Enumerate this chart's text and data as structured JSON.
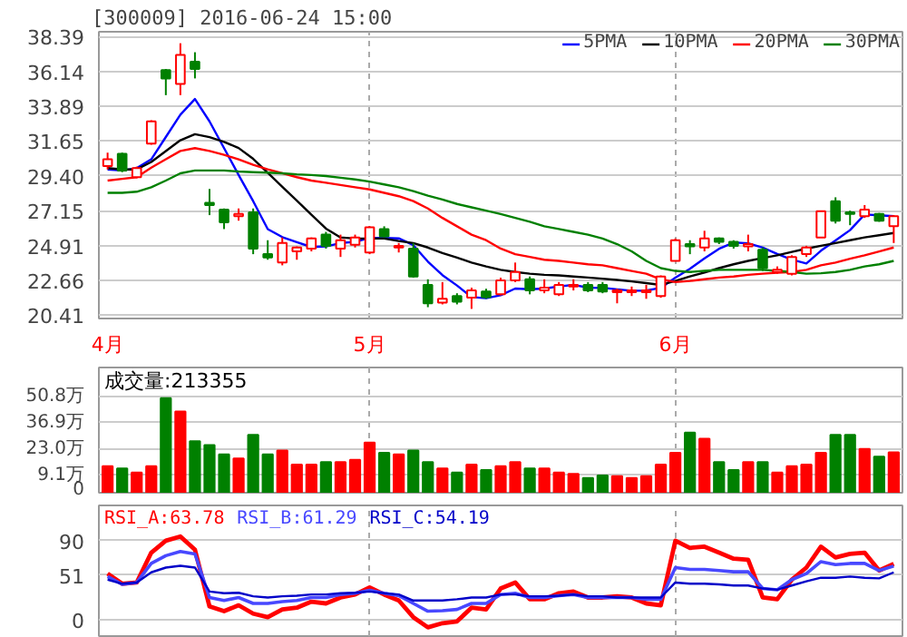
{
  "chart_data": [
    {
      "type": "candlestick",
      "title": "[300009] 2016-06-24 15:00",
      "categories": [
        "4月",
        null,
        null,
        null,
        null,
        null,
        null,
        null,
        null,
        null,
        null,
        null,
        null,
        null,
        null,
        null,
        null,
        null,
        "5月",
        null,
        null,
        null,
        null,
        null,
        null,
        null,
        null,
        null,
        null,
        null,
        null,
        null,
        null,
        null,
        null,
        null,
        null,
        null,
        null,
        "6月",
        null,
        null,
        null,
        null,
        null,
        null,
        null,
        null,
        null,
        null,
        null,
        null,
        null,
        null,
        null
      ],
      "ohlc": [
        [
          30.04,
          30.9,
          29.82,
          30.47
        ],
        [
          30.83,
          30.9,
          29.64,
          29.75
        ],
        [
          29.32,
          30.0,
          29.25,
          29.9
        ],
        [
          31.48,
          32.99,
          31.41,
          32.92
        ],
        [
          36.23,
          36.3,
          34.61,
          35.69
        ],
        [
          35.33,
          37.96,
          34.61,
          37.2
        ],
        [
          36.77,
          37.38,
          35.69,
          36.3
        ],
        [
          27.66,
          28.56,
          26.87,
          27.52
        ],
        [
          27.23,
          27.3,
          25.97,
          26.4
        ],
        [
          26.8,
          27.3,
          26.51,
          26.94
        ],
        [
          27.05,
          27.3,
          24.35,
          24.71
        ],
        [
          24.35,
          25.25,
          23.99,
          24.13
        ],
        [
          23.81,
          25.43,
          23.63,
          25.07
        ],
        [
          24.53,
          24.85,
          23.99,
          24.78
        ],
        [
          24.71,
          25.43,
          24.53,
          25.36
        ],
        [
          25.61,
          25.79,
          24.71,
          24.89
        ],
        [
          24.71,
          25.61,
          24.17,
          25.25
        ],
        [
          24.96,
          25.61,
          24.78,
          25.43
        ],
        [
          24.46,
          26.15,
          24.35,
          26.08
        ],
        [
          25.97,
          26.15,
          25.43,
          25.5
        ],
        [
          24.78,
          25.07,
          24.46,
          24.89
        ],
        [
          24.71,
          25.07,
          22.84,
          22.91
        ],
        [
          22.37,
          22.73,
          20.93,
          21.18
        ],
        [
          21.22,
          22.55,
          21.11,
          21.47
        ],
        [
          21.65,
          21.83,
          21.11,
          21.29
        ],
        [
          21.54,
          22.19,
          20.82,
          22.01
        ],
        [
          21.94,
          22.12,
          21.47,
          21.58
        ],
        [
          21.76,
          22.84,
          21.69,
          22.66
        ],
        [
          22.66,
          23.81,
          22.55,
          23.2
        ],
        [
          22.73,
          22.91,
          21.76,
          22.01
        ],
        [
          22.01,
          22.73,
          21.83,
          22.19
        ],
        [
          21.76,
          22.55,
          21.65,
          22.37
        ],
        [
          22.26,
          22.73,
          22.01,
          22.37
        ],
        [
          22.37,
          22.55,
          21.9,
          22.01
        ],
        [
          22.37,
          22.55,
          21.83,
          21.94
        ],
        [
          21.9,
          22.12,
          21.18,
          22.01
        ],
        [
          21.9,
          22.26,
          21.65,
          22.01
        ],
        [
          21.9,
          22.37,
          21.47,
          22.01
        ],
        [
          21.65,
          22.98,
          21.54,
          22.91
        ],
        [
          23.92,
          25.36,
          23.92,
          25.25
        ],
        [
          25.0,
          25.25,
          24.35,
          24.85
        ],
        [
          24.78,
          25.86,
          24.53,
          25.36
        ],
        [
          25.36,
          25.43,
          25.0,
          25.14
        ],
        [
          25.14,
          25.25,
          24.71,
          24.89
        ],
        [
          24.85,
          25.61,
          24.53,
          25.0
        ],
        [
          24.64,
          24.78,
          23.27,
          23.45
        ],
        [
          23.2,
          23.56,
          23.09,
          23.34
        ],
        [
          23.09,
          24.28,
          22.98,
          24.17
        ],
        [
          24.35,
          24.89,
          24.17,
          24.78
        ],
        [
          25.43,
          27.16,
          25.43,
          27.12
        ],
        [
          27.77,
          28.02,
          26.33,
          26.51
        ],
        [
          27.05,
          27.16,
          26.22,
          26.94
        ],
        [
          26.8,
          27.52,
          26.69,
          27.23
        ],
        [
          26.94,
          27.01,
          26.44,
          26.51
        ],
        [
          26.15,
          26.87,
          25.07,
          26.8
        ]
      ],
      "colors": [
        "#ff0000",
        "#008000",
        "#ff0000",
        "#ff0000",
        "#008000",
        "#ff0000",
        "#008000",
        "#008000",
        "#008000",
        "#ff0000",
        "#008000",
        "#008000",
        "#ff0000",
        "#ff0000",
        "#ff0000",
        "#008000",
        "#ff0000",
        "#ff0000",
        "#ff0000",
        "#008000",
        "#ff0000",
        "#008000",
        "#008000",
        "#ff0000",
        "#008000",
        "#ff0000",
        "#008000",
        "#ff0000",
        "#ff0000",
        "#008000",
        "#ff0000",
        "#ff0000",
        "#ff0000",
        "#008000",
        "#008000",
        "#ff0000",
        "#ff0000",
        "#ff0000",
        "#ff0000",
        "#ff0000",
        "#008000",
        "#ff0000",
        "#008000",
        "#008000",
        "#ff0000",
        "#008000",
        "#ff0000",
        "#ff0000",
        "#ff0000",
        "#ff0000",
        "#008000",
        "#008000",
        "#ff0000",
        "#008000",
        "#ff0000"
      ],
      "series": [
        {
          "type": "line",
          "name": "5PMA",
          "color": "#0000ff",
          "values": [
            29.82,
            29.75,
            29.9,
            30.47,
            31.91,
            33.35,
            34.36,
            32.92,
            31.19,
            29.46,
            27.77,
            25.97,
            25.45,
            25.13,
            24.81,
            24.85,
            25.07,
            25.14,
            25.4,
            25.4,
            25.37,
            24.93,
            23.87,
            23.0,
            22.33,
            21.58,
            21.51,
            21.7,
            22.13,
            22.09,
            22.13,
            22.27,
            22.37,
            22.19,
            22.18,
            22.08,
            21.99,
            22.0,
            22.18,
            22.83,
            23.41,
            24.08,
            24.7,
            25.1,
            25.05,
            24.77,
            24.36,
            24.0,
            23.75,
            24.57,
            25.23,
            25.9,
            26.91,
            26.86,
            26.8
          ]
        },
        {
          "type": "line",
          "name": "10PMA",
          "color": "#000000",
          "values": [
            29.9,
            29.82,
            29.82,
            30.3,
            31.0,
            31.7,
            32.09,
            31.9,
            31.6,
            31.2,
            30.5,
            29.6,
            28.7,
            27.8,
            26.9,
            26.0,
            25.43,
            25.36,
            25.36,
            25.36,
            25.2,
            25.07,
            24.78,
            24.42,
            24.13,
            23.81,
            23.56,
            23.34,
            23.2,
            23.09,
            23.02,
            22.98,
            22.91,
            22.84,
            22.77,
            22.69,
            22.59,
            22.48,
            22.37,
            22.62,
            22.91,
            23.16,
            23.45,
            23.7,
            23.92,
            24.1,
            24.28,
            24.5,
            24.71,
            24.89,
            25.07,
            25.25,
            25.43,
            25.57,
            25.72
          ]
        },
        {
          "type": "line",
          "name": "20PMA",
          "color": "#ff0000",
          "values": [
            29.1,
            29.21,
            29.32,
            29.93,
            30.47,
            31.01,
            31.19,
            31.01,
            30.76,
            30.47,
            30.11,
            29.82,
            29.57,
            29.32,
            29.1,
            28.96,
            28.81,
            28.67,
            28.53,
            28.31,
            28.09,
            27.77,
            27.3,
            26.69,
            26.15,
            25.61,
            25.25,
            24.71,
            24.35,
            24.17,
            23.99,
            23.92,
            23.81,
            23.7,
            23.63,
            23.45,
            23.27,
            23.09,
            22.73,
            22.55,
            22.62,
            22.73,
            22.84,
            22.91,
            23.02,
            23.09,
            23.16,
            23.2,
            23.34,
            23.63,
            23.81,
            24.06,
            24.28,
            24.53,
            24.78
          ]
        },
        {
          "type": "line",
          "name": "30PMA",
          "color": "#008000",
          "values": [
            28.31,
            28.31,
            28.38,
            28.67,
            29.1,
            29.57,
            29.75,
            29.75,
            29.75,
            29.68,
            29.64,
            29.61,
            29.57,
            29.5,
            29.46,
            29.39,
            29.28,
            29.17,
            29.03,
            28.85,
            28.67,
            28.42,
            28.13,
            27.88,
            27.59,
            27.37,
            27.16,
            26.94,
            26.69,
            26.44,
            26.15,
            25.97,
            25.79,
            25.61,
            25.36,
            25.0,
            24.53,
            23.92,
            23.45,
            23.27,
            23.2,
            23.27,
            23.34,
            23.34,
            23.34,
            23.34,
            23.27,
            23.2,
            23.09,
            23.12,
            23.2,
            23.34,
            23.56,
            23.7,
            23.92
          ]
        }
      ],
      "ylim": [
        20.2,
        38.7
      ],
      "yticks": [
        20.41,
        22.66,
        24.91,
        27.15,
        {
          "value": 29.4,
          "label": "29.40"
        },
        31.65,
        33.89,
        36.14,
        38.39
      ],
      "grid": true,
      "legend": "top right"
    },
    {
      "type": "bar",
      "annotations": [
        "成交量:213355"
      ],
      "categories": [
        null,
        null,
        null,
        null,
        null,
        null,
        null,
        null,
        null,
        null,
        null,
        null,
        null,
        null,
        null,
        null,
        null,
        null,
        null,
        null,
        null,
        null,
        null,
        null,
        null,
        null,
        null,
        null,
        null,
        null,
        null,
        null,
        null,
        null,
        null,
        null,
        null,
        null,
        null,
        null,
        null,
        null,
        null,
        null,
        null,
        null,
        null,
        null,
        null,
        null,
        null,
        null,
        null,
        null,
        null
      ],
      "values": [
        14.0,
        12.8,
        10.7,
        14.0,
        49.9,
        42.8,
        27.2,
        25.1,
        20.2,
        18.1,
        30.5,
        20.2,
        22.2,
        14.8,
        14.8,
        16.1,
        16.1,
        17.3,
        26.4,
        21.0,
        20.2,
        22.2,
        16.1,
        12.8,
        10.7,
        14.8,
        11.9,
        14.0,
        16.1,
        12.8,
        12.8,
        10.7,
        9.9,
        7.8,
        9.1,
        8.7,
        7.8,
        8.7,
        14.8,
        21.0,
        31.7,
        28.4,
        16.1,
        11.9,
        16.1,
        16.1,
        10.7,
        14.0,
        14.8,
        21.0,
        30.5,
        30.5,
        23.1,
        19.0,
        21.3
      ],
      "colors": [
        "#ff0000",
        "#008000",
        "#ff0000",
        "#ff0000",
        "#008000",
        "#ff0000",
        "#008000",
        "#008000",
        "#008000",
        "#ff0000",
        "#008000",
        "#008000",
        "#ff0000",
        "#ff0000",
        "#ff0000",
        "#008000",
        "#ff0000",
        "#ff0000",
        "#ff0000",
        "#008000",
        "#ff0000",
        "#008000",
        "#008000",
        "#ff0000",
        "#008000",
        "#ff0000",
        "#008000",
        "#ff0000",
        "#ff0000",
        "#008000",
        "#ff0000",
        "#ff0000",
        "#ff0000",
        "#008000",
        "#008000",
        "#ff0000",
        "#ff0000",
        "#ff0000",
        "#ff0000",
        "#ff0000",
        "#008000",
        "#ff0000",
        "#008000",
        "#008000",
        "#ff0000",
        "#008000",
        "#ff0000",
        "#ff0000",
        "#ff0000",
        "#ff0000",
        "#008000",
        "#008000",
        "#ff0000",
        "#008000",
        "#ff0000"
      ],
      "ylim": [
        0,
        66
      ],
      "yticks": [
        0,
        {
          "value": 9.1,
          "label": "9.1万"
        },
        {
          "value": 23.0,
          "label": "23.0万"
        },
        {
          "value": 36.9,
          "label": "36.9万"
        },
        {
          "value": 50.8,
          "label": "50.8万"
        }
      ],
      "grid": true,
      "tick_labels": "y"
    },
    {
      "type": "line",
      "categories": [
        null,
        null,
        null,
        null,
        null,
        null,
        null,
        null,
        null,
        null,
        null,
        null,
        null,
        null,
        null,
        null,
        null,
        null,
        null,
        null,
        null,
        null,
        null,
        null,
        null,
        null,
        null,
        null,
        null,
        null,
        null,
        null,
        null,
        null,
        null,
        null,
        null,
        null,
        null,
        null,
        null,
        null,
        null,
        null,
        null,
        null,
        null,
        null,
        null,
        null,
        null,
        null,
        null,
        null,
        null
      ],
      "series": [
        {
          "name": "RSI_A:63.78",
          "color": "#ff0000",
          "values": [
            52.8,
            41.3,
            42.7,
            76.5,
            90.0,
            94.8,
            79.9,
            15.6,
            10.2,
            16.9,
            7.4,
            3.4,
            12.2,
            14.2,
            21.0,
            19.0,
            25.7,
            29.1,
            37.2,
            29.1,
            22.3,
            3.4,
            -8.1,
            -3.4,
            -1.4,
            14.2,
            12.2,
            35.9,
            42.7,
            23.7,
            23.7,
            30.5,
            32.5,
            25.7,
            25.7,
            27.1,
            25.7,
            19.0,
            16.9,
            90.0,
            81.9,
            83.3,
            76.5,
            69.7,
            68.4,
            25.7,
            23.7,
            46.0,
            59.6,
            83.3,
            71.1,
            75.1,
            76.5,
            56.2,
            63.78
          ]
        },
        {
          "name": "RSI_B:61.29",
          "color": "#4848ff",
          "values": [
            49.4,
            40.6,
            42.7,
            64.3,
            73.1,
            77.9,
            75.1,
            25.7,
            22.3,
            25.7,
            19.0,
            19.0,
            21.0,
            22.3,
            25.7,
            25.7,
            29.1,
            30.5,
            33.9,
            30.5,
            27.8,
            19.0,
            10.2,
            10.8,
            12.2,
            19.0,
            19.0,
            29.1,
            30.5,
            25.7,
            25.7,
            27.8,
            29.1,
            25.7,
            25.7,
            25.7,
            25.7,
            23.7,
            23.7,
            59.6,
            57.5,
            57.5,
            56.2,
            54.8,
            54.8,
            35.9,
            34.5,
            46.0,
            52.8,
            66.3,
            63.0,
            64.3,
            64.3,
            56.2,
            61.29
          ]
        },
        {
          "name": "RSI_C:54.19",
          "color": "#0000c8",
          "values": [
            46.0,
            41.3,
            42.7,
            54.2,
            59.6,
            61.6,
            59.6,
            32.5,
            30.5,
            31.1,
            27.1,
            25.7,
            27.1,
            27.8,
            29.1,
            29.1,
            30.5,
            31.1,
            32.5,
            30.5,
            29.1,
            22.3,
            22.3,
            22.3,
            23.7,
            25.7,
            25.7,
            29.1,
            29.1,
            27.1,
            27.1,
            27.8,
            29.1,
            27.1,
            27.1,
            25.7,
            25.7,
            25.7,
            25.7,
            42.7,
            41.3,
            41.3,
            40.6,
            39.3,
            39.3,
            35.9,
            34.5,
            39.3,
            44.0,
            48.1,
            48.1,
            49.4,
            48.1,
            47.4,
            54.19
          ]
        }
      ],
      "ylim": [
        -18,
        130
      ],
      "yticks": [
        0,
        51,
        90
      ],
      "grid": true,
      "tick_labels": "y"
    }
  ]
}
